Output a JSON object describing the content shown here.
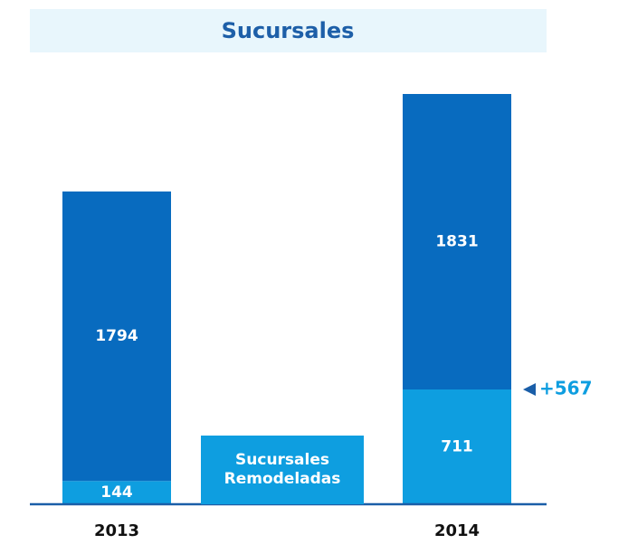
{
  "chart_data": {
    "type": "stacked_bar",
    "title": "Sucursales",
    "categories": [
      "2013",
      "2014"
    ],
    "series": [
      {
        "name": "Sucursales Remodeladas",
        "color": "#0e9ee0",
        "values": [
          144,
          711
        ]
      },
      {
        "color": "#086bbf",
        "values": [
          1794,
          1831
        ]
      }
    ],
    "annotation": "+567"
  }
}
